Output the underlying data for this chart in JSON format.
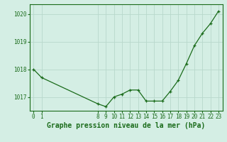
{
  "x": [
    0,
    1,
    8,
    9,
    10,
    11,
    12,
    13,
    14,
    15,
    16,
    17,
    18,
    19,
    20,
    21,
    22,
    23
  ],
  "y": [
    1018.0,
    1017.7,
    1016.75,
    1016.65,
    1017.0,
    1017.1,
    1017.25,
    1017.25,
    1016.85,
    1016.85,
    1016.85,
    1017.2,
    1017.6,
    1018.2,
    1018.85,
    1019.3,
    1019.65,
    1020.1
  ],
  "line_color": "#1a6b1a",
  "marker_color": "#1a6b1a",
  "bg_color": "#d4eee4",
  "grid_color": "#b8d8cc",
  "axis_color": "#1a6b1a",
  "tick_label_color": "#1a6b1a",
  "xlabel": "Graphe pression niveau de la mer (hPa)",
  "xlabel_color": "#1a6b1a",
  "ylim": [
    1016.5,
    1020.35
  ],
  "yticks": [
    1017,
    1018,
    1019,
    1020
  ],
  "xticks": [
    0,
    1,
    8,
    9,
    10,
    11,
    12,
    13,
    14,
    15,
    16,
    17,
    18,
    19,
    20,
    21,
    22,
    23
  ],
  "xlim": [
    -0.5,
    23.5
  ],
  "tick_fontsize": 5.5,
  "xlabel_fontsize": 7.0
}
